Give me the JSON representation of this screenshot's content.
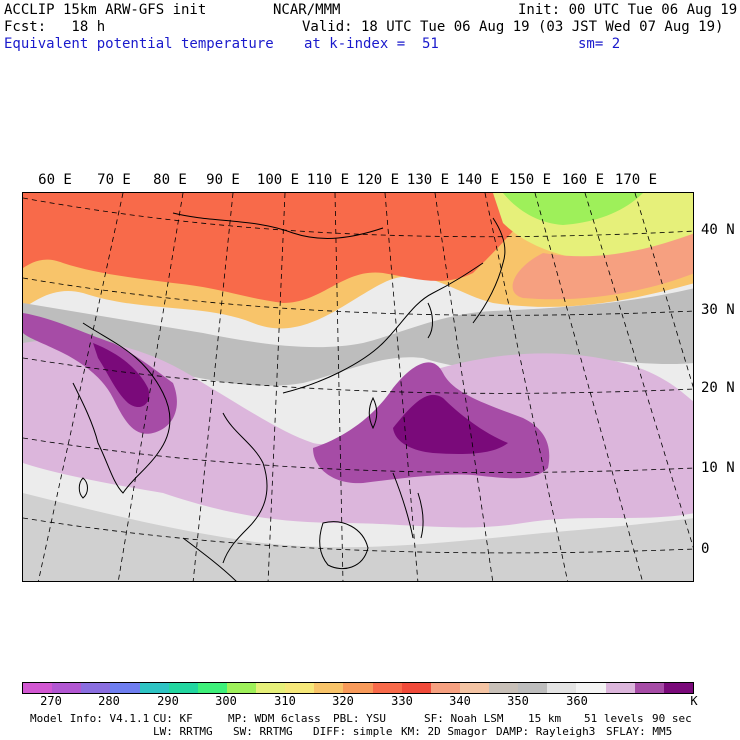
{
  "header": {
    "line1_left": "ACCLIP 15km ARW-GFS init",
    "line1_center": "NCAR/MMM",
    "line1_right": "Init: 00 UTC Tue 06 Aug 19",
    "line2_left": "Fcst:   18 h",
    "line2_right": "Valid: 18 UTC Tue 06 Aug 19 (03 JST Wed 07 Aug 19)",
    "line3_field": "Equivalent potential temperature",
    "line3_level": "at k-index =  51",
    "line3_smooth": "sm= 2"
  },
  "map": {
    "lon_labels": [
      "60 E",
      "70 E",
      "80 E",
      "90 E",
      "100 E",
      "110 E",
      "120 E",
      "130 E",
      "140 E",
      "150 E",
      "160 E",
      "170 E"
    ],
    "lat_labels": [
      "40 N",
      "30 N",
      "20 N",
      "10 N",
      "0"
    ]
  },
  "colorbar": {
    "colors": [
      "#d257d2",
      "#b257d2",
      "#8a6ee0",
      "#6e7ef0",
      "#2ec4c4",
      "#22d6a0",
      "#3ef07a",
      "#9ef05a",
      "#e6f07a",
      "#f6e87a",
      "#f8c46a",
      "#f89a5a",
      "#f86a4a",
      "#f04a3a",
      "#f6a080",
      "#f4c4a4",
      "#c8c0b8",
      "#bdbdbd",
      "#e4e4e4",
      "#f4f4f4",
      "#dcb6dc",
      "#a64ca6",
      "#7a0a7a"
    ],
    "tick_labels": [
      "270",
      "280",
      "290",
      "300",
      "310",
      "320",
      "330",
      "340",
      "350",
      "360",
      "K"
    ]
  },
  "footer": {
    "row1": [
      "Model Info: V4.1.1",
      "CU: KF",
      "MP: WDM 6class",
      "PBL: YSU",
      "SF: Noah LSM",
      "15 km",
      "51 levels",
      "90 sec"
    ],
    "row2": [
      "LW: RRTMG",
      "SW: RRTMG",
      "DIFF: simple",
      "KM: 2D Smagor",
      "DAMP: Rayleigh3",
      "SFLAY: MM5"
    ]
  }
}
